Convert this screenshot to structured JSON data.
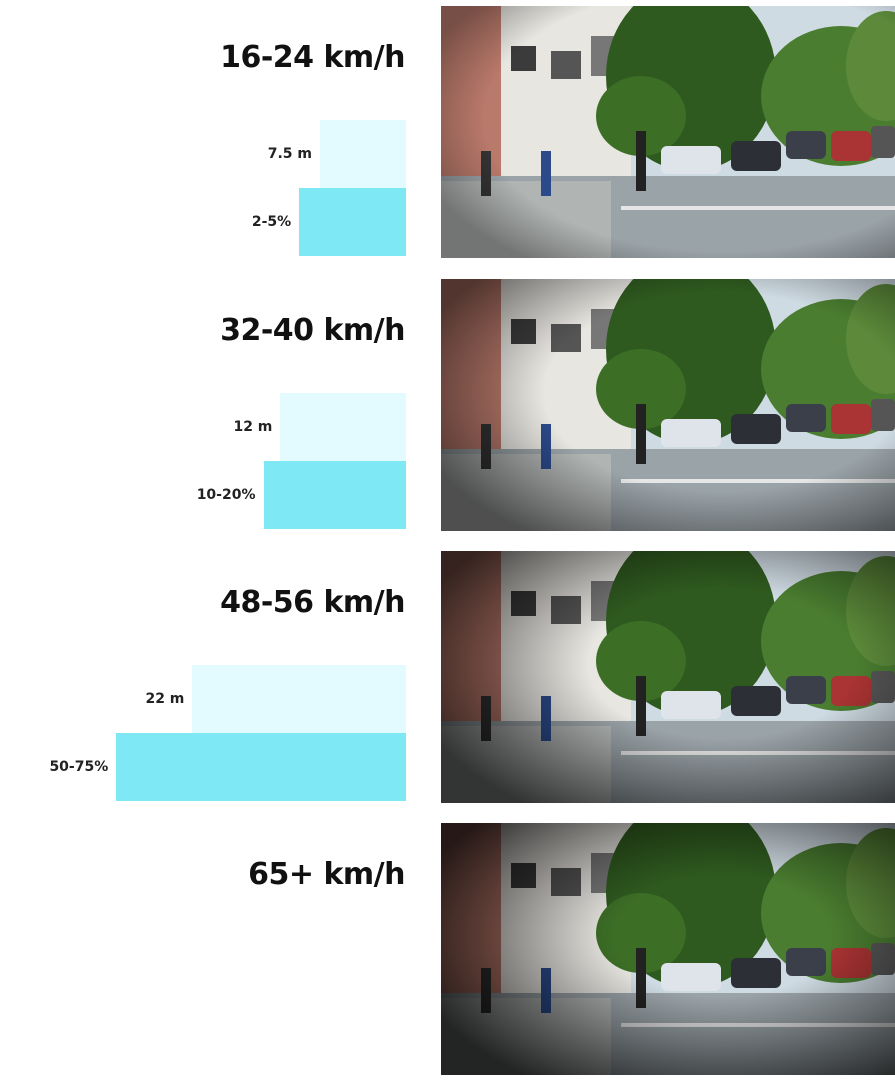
{
  "chart_data": {
    "type": "bar",
    "orientation": "horizontal",
    "categories": [
      "16-24 km/h",
      "32-40 km/h",
      "48-56 km/h",
      "65+ km/h"
    ],
    "series": [
      {
        "values": [
          7.5,
          12,
          22,
          null
        ],
        "labels": [
          "7.5 m",
          "12 m",
          "22 m",
          ""
        ]
      },
      {
        "values": [
          3.5,
          15,
          62.5,
          null
        ],
        "labels": [
          "2-5%",
          "10-20%",
          "50-75%",
          ""
        ]
      }
    ]
  },
  "colors": {
    "distance_bar": "#e3fbff",
    "risk_bar": "#7ee8f5"
  },
  "photos": [
    {
      "icon": "street-crossing-photo",
      "darkness": 0.0
    },
    {
      "icon": "street-crossing-photo",
      "darkness": 0.35
    },
    {
      "icon": "street-crossing-photo",
      "darkness": 0.6
    },
    {
      "icon": "street-crossing-photo",
      "darkness": 0.75
    }
  ]
}
